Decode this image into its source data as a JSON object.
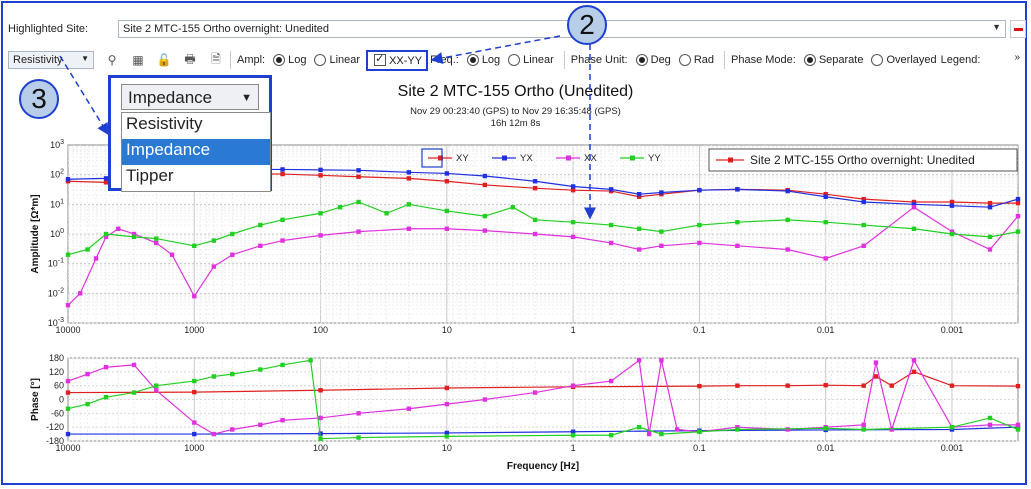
{
  "header": {
    "highlighted_label": "Highlighted Site:",
    "site_value": "Site 2 MTC-155 Ortho overnight: Unedited"
  },
  "toolbar": {
    "mode_select": "Resistivity",
    "ampl_label": "Ampl:",
    "log": "Log",
    "linear": "Linear",
    "xxyy": "XX-YY",
    "freq_label": "Freq.:",
    "phase_unit_label": "Phase Unit:",
    "deg": "Deg",
    "rad": "Rad",
    "phase_mode_label": "Phase Mode:",
    "separate": "Separate",
    "overlayed": "Overlayed",
    "legend_label": "Legend:",
    "more": "»",
    "state": {
      "ampl": "Log",
      "xxyy_checked": true,
      "freq": "Log",
      "phase_unit": "Deg",
      "phase_mode": "Separate"
    }
  },
  "dropdown": {
    "selected": "Impedance",
    "options": [
      "Resistivity",
      "Impedance",
      "Tipper"
    ],
    "highlighted": "Impedance"
  },
  "callouts": [
    "2",
    "3"
  ],
  "plot": {
    "title": "Site 2 MTC-155 Ortho (Unedited)",
    "time_range": "Nov 29 00:23:40 (GPS) to Nov 29 16:35:48 (GPS)",
    "duration": "16h 12m 8s",
    "legend_box": "Site 2 MTC-155 Ortho overnight: Unedited"
  },
  "chart_data": [
    {
      "type": "line",
      "title": "Site 2 MTC-155 Ortho (Unedited)",
      "ylabel": "Amplitude [Ω*m]",
      "xlabel": "",
      "x_scale": "log-reversed",
      "y_scale": "log",
      "xlim": [
        10000,
        0.0003
      ],
      "ylim": [
        0.001,
        1000
      ],
      "x_ticks": [
        "10000",
        "1000",
        "100",
        "10",
        "1",
        "0.1",
        "0.01",
        "0.001"
      ],
      "y_ticks": [
        "10^-3",
        "10^-2",
        "10^-1",
        "10^0",
        "10^1",
        "10^2",
        "10^3"
      ],
      "legend": "top-center",
      "colors": {
        "XY": "#e02020",
        "YX": "#2030e0",
        "XX": "#e030e0",
        "YY": "#20d020"
      },
      "series": [
        {
          "name": "XY",
          "values": [
            [
              10000,
              60
            ],
            [
              5000,
              55
            ],
            [
              2000,
              70
            ],
            [
              1000,
              90
            ],
            [
              500,
              110
            ],
            [
              200,
              105
            ],
            [
              100,
              95
            ],
            [
              50,
              85
            ],
            [
              20,
              75
            ],
            [
              10,
              60
            ],
            [
              5,
              45
            ],
            [
              2,
              35
            ],
            [
              1,
              30
            ],
            [
              0.5,
              28
            ],
            [
              0.3,
              18
            ],
            [
              0.2,
              22
            ],
            [
              0.1,
              30
            ],
            [
              0.05,
              32
            ],
            [
              0.02,
              30
            ],
            [
              0.01,
              22
            ],
            [
              0.005,
              15
            ],
            [
              0.002,
              12
            ],
            [
              0.001,
              12
            ],
            [
              0.0005,
              11
            ],
            [
              0.0003,
              11
            ]
          ]
        },
        {
          "name": "YX",
          "values": [
            [
              10000,
              70
            ],
            [
              5000,
              75
            ],
            [
              2000,
              100
            ],
            [
              1000,
              140
            ],
            [
              500,
              150
            ],
            [
              200,
              150
            ],
            [
              100,
              145
            ],
            [
              50,
              140
            ],
            [
              20,
              120
            ],
            [
              10,
              110
            ],
            [
              5,
              90
            ],
            [
              2,
              60
            ],
            [
              1,
              40
            ],
            [
              0.5,
              32
            ],
            [
              0.3,
              22
            ],
            [
              0.2,
              25
            ],
            [
              0.1,
              30
            ],
            [
              0.05,
              32
            ],
            [
              0.02,
              28
            ],
            [
              0.01,
              18
            ],
            [
              0.005,
              12
            ],
            [
              0.002,
              10
            ],
            [
              0.001,
              9
            ],
            [
              0.0005,
              8
            ],
            [
              0.0003,
              15
            ]
          ]
        },
        {
          "name": "XX",
          "values": [
            [
              10000,
              0.004
            ],
            [
              8000,
              0.01
            ],
            [
              6000,
              0.15
            ],
            [
              5000,
              0.8
            ],
            [
              4000,
              1.5
            ],
            [
              3000,
              1.0
            ],
            [
              2000,
              0.5
            ],
            [
              1500,
              0.2
            ],
            [
              1000,
              0.008
            ],
            [
              700,
              0.08
            ],
            [
              500,
              0.2
            ],
            [
              300,
              0.4
            ],
            [
              200,
              0.6
            ],
            [
              100,
              0.9
            ],
            [
              50,
              1.2
            ],
            [
              20,
              1.5
            ],
            [
              10,
              1.5
            ],
            [
              5,
              1.3
            ],
            [
              2,
              1.0
            ],
            [
              1,
              0.8
            ],
            [
              0.5,
              0.5
            ],
            [
              0.3,
              0.3
            ],
            [
              0.2,
              0.4
            ],
            [
              0.1,
              0.5
            ],
            [
              0.05,
              0.4
            ],
            [
              0.02,
              0.3
            ],
            [
              0.01,
              0.15
            ],
            [
              0.005,
              0.4
            ],
            [
              0.002,
              8
            ],
            [
              0.001,
              1.2
            ],
            [
              0.0005,
              0.3
            ],
            [
              0.0003,
              4
            ]
          ]
        },
        {
          "name": "YY",
          "values": [
            [
              10000,
              0.2
            ],
            [
              7000,
              0.3
            ],
            [
              5000,
              1.0
            ],
            [
              3000,
              0.8
            ],
            [
              2000,
              0.7
            ],
            [
              1000,
              0.4
            ],
            [
              700,
              0.6
            ],
            [
              500,
              1.0
            ],
            [
              300,
              2
            ],
            [
              200,
              3
            ],
            [
              100,
              5
            ],
            [
              70,
              8
            ],
            [
              50,
              12
            ],
            [
              30,
              5
            ],
            [
              20,
              10
            ],
            [
              10,
              6
            ],
            [
              5,
              4
            ],
            [
              3,
              8
            ],
            [
              2,
              3
            ],
            [
              1,
              2.5
            ],
            [
              0.5,
              2.0
            ],
            [
              0.3,
              1.5
            ],
            [
              0.2,
              1.2
            ],
            [
              0.1,
              2.0
            ],
            [
              0.05,
              2.5
            ],
            [
              0.02,
              3
            ],
            [
              0.01,
              2.5
            ],
            [
              0.005,
              2
            ],
            [
              0.002,
              1.5
            ],
            [
              0.001,
              1.0
            ],
            [
              0.0005,
              0.8
            ],
            [
              0.0003,
              1.2
            ]
          ]
        }
      ]
    },
    {
      "type": "line",
      "ylabel": "Phase [°]",
      "xlabel": "Frequency [Hz]",
      "x_scale": "log-reversed",
      "xlim": [
        10000,
        0.0003
      ],
      "ylim": [
        -180,
        180
      ],
      "x_ticks": [
        "10000",
        "1000",
        "100",
        "10",
        "1",
        "0.1",
        "0.01",
        "0.001"
      ],
      "y_ticks": [
        "180",
        "120",
        "60",
        "0",
        "-60",
        "-120",
        "-180"
      ],
      "series": [
        {
          "name": "XY",
          "values": [
            [
              10000,
              30
            ],
            [
              1000,
              32
            ],
            [
              100,
              40
            ],
            [
              10,
              50
            ],
            [
              1,
              55
            ],
            [
              0.1,
              58
            ],
            [
              0.05,
              60
            ],
            [
              0.02,
              60
            ],
            [
              0.01,
              62
            ],
            [
              0.005,
              60
            ],
            [
              0.004,
              100
            ],
            [
              0.003,
              60
            ],
            [
              0.002,
              120
            ],
            [
              0.001,
              60
            ],
            [
              0.0003,
              58
            ]
          ]
        },
        {
          "name": "YX",
          "values": [
            [
              10000,
              -150
            ],
            [
              1000,
              -150
            ],
            [
              100,
              -148
            ],
            [
              10,
              -145
            ],
            [
              1,
              -140
            ],
            [
              0.1,
              -135
            ],
            [
              0.01,
              -132
            ],
            [
              0.001,
              -130
            ],
            [
              0.0003,
              -120
            ]
          ]
        },
        {
          "name": "XX",
          "values": [
            [
              10000,
              80
            ],
            [
              7000,
              110
            ],
            [
              5000,
              140
            ],
            [
              3000,
              150
            ],
            [
              2000,
              40
            ],
            [
              1000,
              -100
            ],
            [
              700,
              -150
            ],
            [
              500,
              -130
            ],
            [
              300,
              -110
            ],
            [
              200,
              -90
            ],
            [
              100,
              -80
            ],
            [
              50,
              -60
            ],
            [
              20,
              -40
            ],
            [
              10,
              -20
            ],
            [
              5,
              0
            ],
            [
              2,
              30
            ],
            [
              1,
              60
            ],
            [
              0.5,
              80
            ],
            [
              0.3,
              170
            ],
            [
              0.25,
              -150
            ],
            [
              0.2,
              170
            ],
            [
              0.15,
              -130
            ],
            [
              0.1,
              -140
            ],
            [
              0.05,
              -120
            ],
            [
              0.02,
              -130
            ],
            [
              0.01,
              -120
            ],
            [
              0.005,
              -110
            ],
            [
              0.004,
              160
            ],
            [
              0.003,
              -130
            ],
            [
              0.002,
              170
            ],
            [
              0.001,
              -120
            ],
            [
              0.0005,
              -110
            ],
            [
              0.0003,
              -110
            ]
          ]
        },
        {
          "name": "YY",
          "values": [
            [
              10000,
              -40
            ],
            [
              7000,
              -20
            ],
            [
              5000,
              10
            ],
            [
              3000,
              30
            ],
            [
              2000,
              60
            ],
            [
              1000,
              80
            ],
            [
              700,
              100
            ],
            [
              500,
              110
            ],
            [
              300,
              130
            ],
            [
              200,
              150
            ],
            [
              120,
              170
            ],
            [
              100,
              -170
            ],
            [
              50,
              -165
            ],
            [
              10,
              -160
            ],
            [
              1,
              -155
            ],
            [
              0.5,
              -155
            ],
            [
              0.3,
              -120
            ],
            [
              0.2,
              -150
            ],
            [
              0.1,
              -140
            ],
            [
              0.05,
              -130
            ],
            [
              0.01,
              -125
            ],
            [
              0.005,
              -130
            ],
            [
              0.001,
              -120
            ],
            [
              0.0005,
              -80
            ],
            [
              0.0003,
              -130
            ]
          ]
        }
      ]
    }
  ]
}
